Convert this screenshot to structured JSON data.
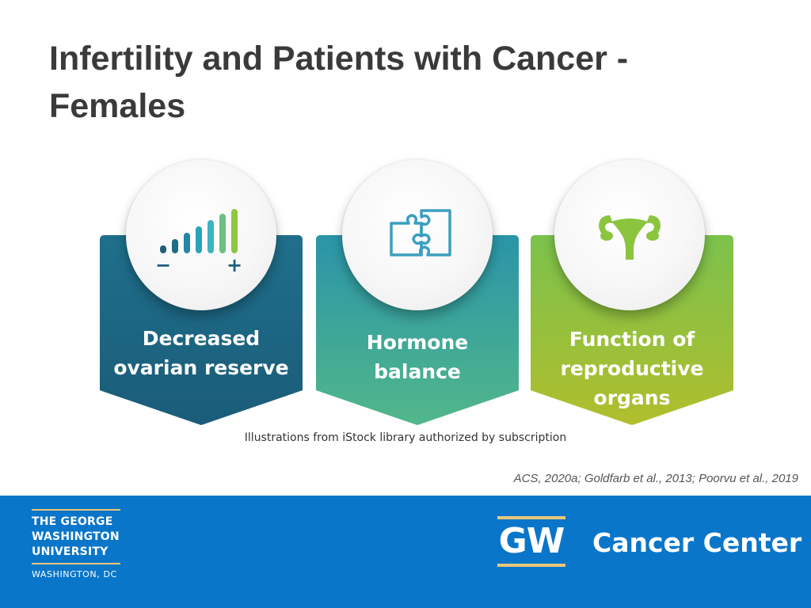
{
  "slide": {
    "title_lines": [
      "Infertility and Patients with Cancer -",
      "Females"
    ]
  },
  "cards": [
    {
      "lines": [
        "Decreased",
        "ovarian reserve"
      ],
      "icon": "signal-bars-icon",
      "minus": "−",
      "plus": "+",
      "color_top": "#1f6f8b",
      "color_bottom": "#1a5c79"
    },
    {
      "lines": [
        "Hormone",
        "balance"
      ],
      "icon": "puzzle-icon",
      "color_top": "#2a94a8",
      "color_bottom": "#52b78a"
    },
    {
      "lines": [
        "Function of",
        "reproductive",
        "organs"
      ],
      "icon": "uterus-icon",
      "color_top": "#7cc24d",
      "color_bottom": "#b0be2c"
    }
  ],
  "caption": "Illustrations from iStock library authorized by subscription",
  "citation": "ACS, 2020a; Goldfarb et al., 2013; Poorvu et al., 2019",
  "footer": {
    "university_lines": [
      "THE GEORGE",
      "WASHINGTON",
      "UNIVERSITY"
    ],
    "location": "WASHINGTON, DC",
    "gw_letters": "GW",
    "center_name": "Cancer Center",
    "colors": {
      "background": "#0a76c9",
      "gold": "#e7c77b"
    }
  }
}
